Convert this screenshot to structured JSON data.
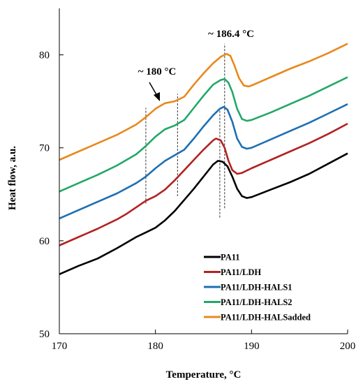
{
  "chart_data": {
    "type": "line",
    "title": "",
    "xlabel": "Temperature, °C",
    "ylabel": "Heat flow,  a.u.",
    "xlim": [
      170,
      200
    ],
    "ylim": [
      50,
      85
    ],
    "xticks": [
      170,
      180,
      190,
      200
    ],
    "yticks": [
      50,
      60,
      70,
      80
    ],
    "grid": false,
    "legend_position": "bottom-right",
    "annotations": [
      {
        "text": "~ 186.4 °C"
      },
      {
        "text": "~ 180 °C"
      }
    ],
    "reference_lines_x": [
      179.0,
      182.3,
      186.7,
      187.2
    ],
    "series": [
      {
        "name": "PA11",
        "color": "#000000",
        "points": [
          [
            170,
            56.4
          ],
          [
            172,
            57.3
          ],
          [
            174,
            58.1
          ],
          [
            176,
            59.2
          ],
          [
            177,
            59.8
          ],
          [
            178,
            60.4
          ],
          [
            179,
            60.9
          ],
          [
            180,
            61.4
          ],
          [
            181,
            62.2
          ],
          [
            182,
            63.2
          ],
          [
            183,
            64.4
          ],
          [
            184,
            65.6
          ],
          [
            185,
            66.9
          ],
          [
            186,
            68.2
          ],
          [
            186.5,
            68.6
          ],
          [
            187,
            68.5
          ],
          [
            187.5,
            68.0
          ],
          [
            188,
            66.9
          ],
          [
            188.5,
            65.6
          ],
          [
            189,
            64.8
          ],
          [
            189.5,
            64.6
          ],
          [
            190,
            64.7
          ],
          [
            192,
            65.5
          ],
          [
            194,
            66.3
          ],
          [
            196,
            67.2
          ],
          [
            198,
            68.3
          ],
          [
            200,
            69.4
          ]
        ]
      },
      {
        "name": "PA11/LDH",
        "color": "#b22222",
        "points": [
          [
            170,
            59.5
          ],
          [
            172,
            60.4
          ],
          [
            174,
            61.3
          ],
          [
            176,
            62.3
          ],
          [
            177,
            62.9
          ],
          [
            178,
            63.6
          ],
          [
            179,
            64.3
          ],
          [
            180,
            64.8
          ],
          [
            181,
            65.5
          ],
          [
            182,
            66.5
          ],
          [
            183,
            67.6
          ],
          [
            184,
            68.7
          ],
          [
            185,
            69.8
          ],
          [
            186,
            70.8
          ],
          [
            186.3,
            71.0
          ],
          [
            186.8,
            70.8
          ],
          [
            187.2,
            70.0
          ],
          [
            187.6,
            68.6
          ],
          [
            188,
            67.6
          ],
          [
            188.5,
            67.2
          ],
          [
            189,
            67.3
          ],
          [
            190,
            67.8
          ],
          [
            192,
            68.7
          ],
          [
            194,
            69.6
          ],
          [
            196,
            70.5
          ],
          [
            198,
            71.5
          ],
          [
            200,
            72.6
          ]
        ]
      },
      {
        "name": "PA11/LDH-HALS1",
        "color": "#1f6fb2",
        "points": [
          [
            170,
            62.4
          ],
          [
            172,
            63.3
          ],
          [
            174,
            64.2
          ],
          [
            176,
            65.1
          ],
          [
            178,
            66.2
          ],
          [
            179,
            66.9
          ],
          [
            180,
            67.8
          ],
          [
            181,
            68.6
          ],
          [
            182,
            69.2
          ],
          [
            183,
            69.8
          ],
          [
            184,
            71.0
          ],
          [
            185,
            72.3
          ],
          [
            186,
            73.5
          ],
          [
            186.7,
            74.2
          ],
          [
            187.1,
            74.4
          ],
          [
            187.5,
            74.1
          ],
          [
            188,
            72.8
          ],
          [
            188.5,
            71.0
          ],
          [
            189,
            70.1
          ],
          [
            189.5,
            69.9
          ],
          [
            190,
            70.0
          ],
          [
            192,
            70.9
          ],
          [
            194,
            71.8
          ],
          [
            196,
            72.7
          ],
          [
            198,
            73.7
          ],
          [
            200,
            74.7
          ]
        ]
      },
      {
        "name": "PA11/LDH-HALS2",
        "color": "#22a867",
        "points": [
          [
            170,
            65.3
          ],
          [
            172,
            66.2
          ],
          [
            174,
            67.1
          ],
          [
            176,
            68.1
          ],
          [
            178,
            69.3
          ],
          [
            179,
            70.2
          ],
          [
            180,
            71.2
          ],
          [
            181,
            72.0
          ],
          [
            182,
            72.4
          ],
          [
            183,
            73.0
          ],
          [
            184,
            74.3
          ],
          [
            185,
            75.6
          ],
          [
            186,
            76.8
          ],
          [
            186.8,
            77.3
          ],
          [
            187.2,
            77.4
          ],
          [
            187.6,
            77.0
          ],
          [
            188,
            76.0
          ],
          [
            188.5,
            74.2
          ],
          [
            189,
            73.1
          ],
          [
            189.5,
            72.9
          ],
          [
            190,
            73.0
          ],
          [
            192,
            73.8
          ],
          [
            194,
            74.7
          ],
          [
            196,
            75.6
          ],
          [
            198,
            76.6
          ],
          [
            200,
            77.6
          ]
        ]
      },
      {
        "name": "PA11/LDH-HALSadded",
        "color": "#e8891e",
        "points": [
          [
            170,
            68.7
          ],
          [
            172,
            69.6
          ],
          [
            174,
            70.5
          ],
          [
            176,
            71.4
          ],
          [
            178,
            72.5
          ],
          [
            179,
            73.3
          ],
          [
            180,
            74.2
          ],
          [
            181,
            74.8
          ],
          [
            182,
            75.0
          ],
          [
            183,
            75.5
          ],
          [
            184,
            76.8
          ],
          [
            185,
            78.0
          ],
          [
            186,
            79.1
          ],
          [
            186.8,
            79.8
          ],
          [
            187.4,
            80.1
          ],
          [
            187.8,
            79.9
          ],
          [
            188.2,
            78.9
          ],
          [
            188.7,
            77.5
          ],
          [
            189.2,
            76.7
          ],
          [
            189.7,
            76.6
          ],
          [
            190,
            76.7
          ],
          [
            192,
            77.6
          ],
          [
            194,
            78.5
          ],
          [
            196,
            79.3
          ],
          [
            198,
            80.2
          ],
          [
            200,
            81.2
          ]
        ]
      }
    ]
  }
}
